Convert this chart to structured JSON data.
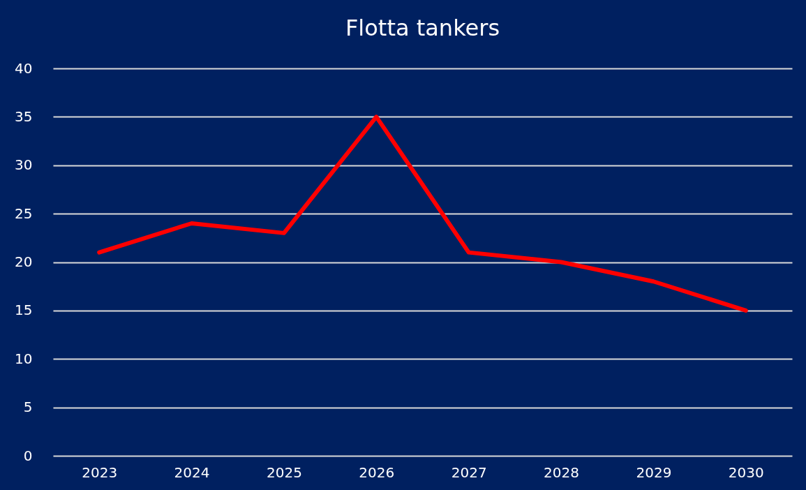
{
  "chart_data": {
    "type": "line",
    "title": "Flotta tankers",
    "categories": [
      "2023",
      "2024",
      "2025",
      "2026",
      "2027",
      "2028",
      "2029",
      "2030"
    ],
    "series": [
      {
        "color": "#ff0000",
        "values": [
          21,
          24,
          23,
          35,
          21,
          20,
          18,
          15
        ]
      }
    ],
    "ylim": [
      0,
      40
    ],
    "yticks": [
      0,
      5,
      10,
      15,
      20,
      25,
      30,
      35,
      40
    ],
    "grid": "y"
  }
}
